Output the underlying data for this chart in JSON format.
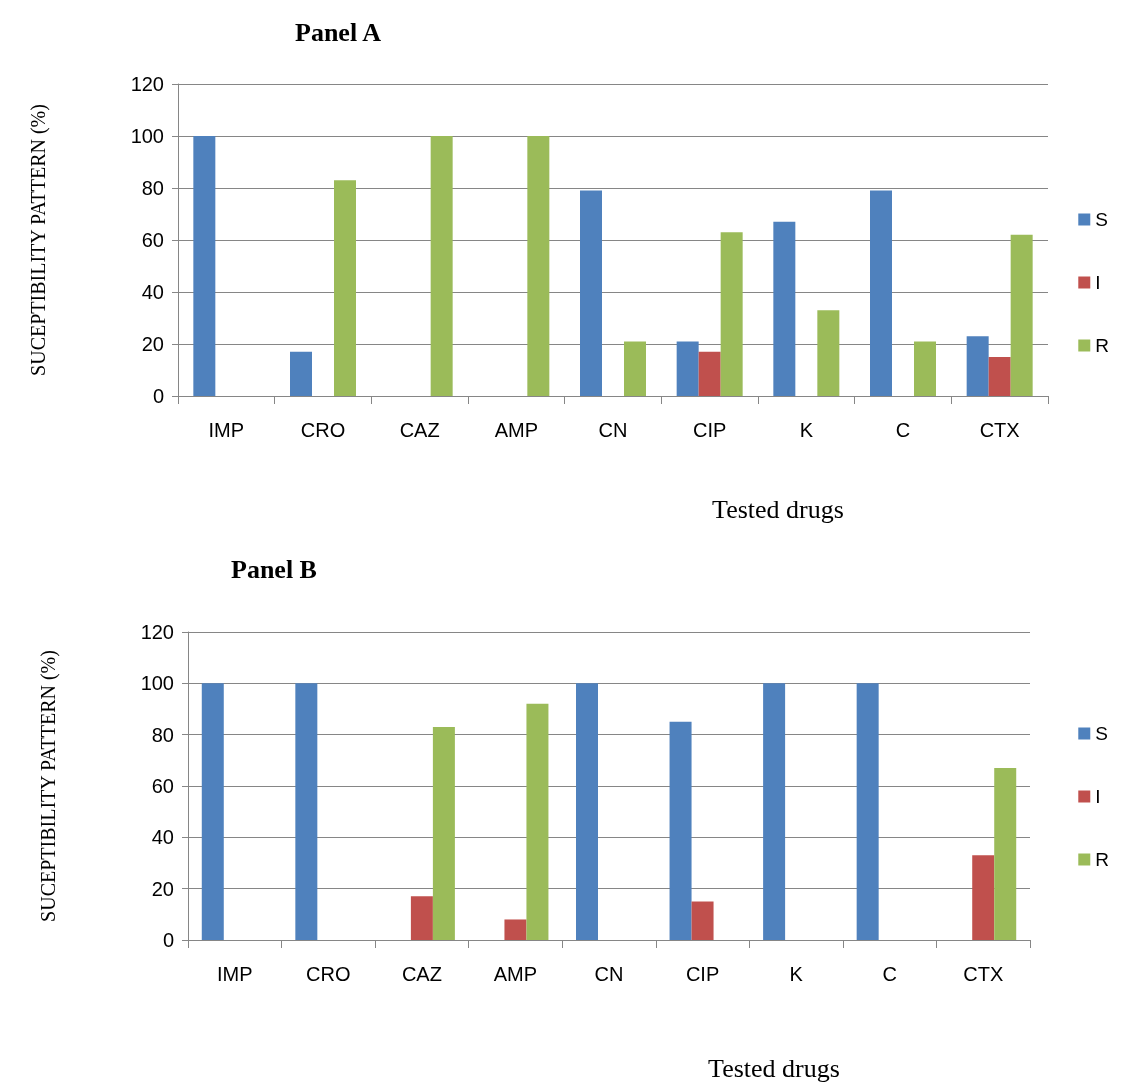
{
  "chart_data": [
    {
      "type": "bar",
      "title": "Panel A",
      "xlabel": "Tested drugs",
      "ylabel": "SUCEPTIBILITY PATTERN (%)",
      "categories": [
        "IMP",
        "CRO",
        "CAZ",
        "AMP",
        "CN",
        "CIP",
        "K",
        "C",
        "CTX"
      ],
      "series": [
        {
          "name": "S",
          "color": "#4f81bd",
          "values": [
            100,
            17,
            0,
            0,
            79,
            21,
            67,
            79,
            23
          ]
        },
        {
          "name": "I",
          "color": "#c0504d",
          "values": [
            0,
            0,
            0,
            0,
            0,
            17,
            0,
            0,
            15
          ]
        },
        {
          "name": "R",
          "color": "#9bbb59",
          "values": [
            0,
            83,
            100,
            100,
            21,
            63,
            33,
            21,
            62
          ]
        }
      ],
      "ylim": [
        0,
        120
      ],
      "yticks": [
        0,
        20,
        40,
        60,
        80,
        100,
        120
      ],
      "grid": "y",
      "legend": "right"
    },
    {
      "type": "bar",
      "title": "Panel B",
      "xlabel": "Tested drugs",
      "ylabel": "SUCEPTIBILITY PATTERN (%)",
      "categories": [
        "IMP",
        "CRO",
        "CAZ",
        "AMP",
        "CN",
        "CIP",
        "K",
        "C",
        "CTX"
      ],
      "series": [
        {
          "name": "S",
          "color": "#4f81bd",
          "values": [
            100,
            100,
            0,
            0,
            100,
            85,
            100,
            100,
            0
          ]
        },
        {
          "name": "I",
          "color": "#c0504d",
          "values": [
            0,
            0,
            17,
            8,
            0,
            15,
            0,
            0,
            33
          ]
        },
        {
          "name": "R",
          "color": "#9bbb59",
          "values": [
            0,
            0,
            83,
            92,
            0,
            0,
            0,
            0,
            67
          ]
        }
      ],
      "ylim": [
        0,
        120
      ],
      "yticks": [
        0,
        20,
        40,
        60,
        80,
        100,
        120
      ],
      "grid": "y",
      "legend": "right"
    }
  ]
}
